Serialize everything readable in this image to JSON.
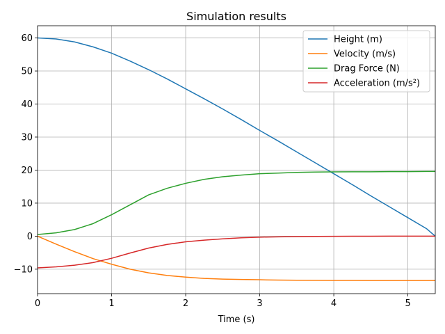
{
  "chart_data": {
    "type": "line",
    "title": "Simulation results",
    "xlabel": "Time (s)",
    "ylabel": "",
    "xlim": [
      0,
      5.37
    ],
    "ylim": [
      -17.4,
      63.7
    ],
    "xticks": [
      0,
      1,
      2,
      3,
      4,
      5
    ],
    "yticks": [
      -10,
      0,
      10,
      20,
      30,
      40,
      50,
      60
    ],
    "grid": true,
    "legend_position": "top-right",
    "x": [
      0,
      0.25,
      0.5,
      0.75,
      1.0,
      1.25,
      1.5,
      1.75,
      2.0,
      2.25,
      2.5,
      2.75,
      3.0,
      3.25,
      3.5,
      3.75,
      4.0,
      4.25,
      4.5,
      4.75,
      5.0,
      5.25,
      5.37
    ],
    "series": [
      {
        "name": "Height (m)",
        "color": "#1f77b4",
        "values": [
          60.0,
          59.7,
          58.8,
          57.3,
          55.4,
          53.0,
          50.4,
          47.6,
          44.6,
          41.6,
          38.5,
          35.3,
          32.0,
          28.8,
          25.5,
          22.2,
          18.9,
          15.6,
          12.2,
          8.9,
          5.6,
          2.3,
          0.0
        ]
      },
      {
        "name": "Velocity (m/s)",
        "color": "#ff7f0e",
        "values": [
          0,
          -2.4,
          -4.7,
          -6.8,
          -8.5,
          -10.0,
          -11.1,
          -11.9,
          -12.4,
          -12.8,
          -13.0,
          -13.1,
          -13.2,
          -13.3,
          -13.35,
          -13.38,
          -13.4,
          -13.4,
          -13.42,
          -13.42,
          -13.43,
          -13.43,
          -13.43
        ]
      },
      {
        "name": "Drag Force (N)",
        "color": "#2ca02c",
        "values": [
          0.5,
          1.0,
          2.0,
          3.8,
          6.5,
          9.5,
          12.5,
          14.5,
          16.0,
          17.2,
          18.0,
          18.5,
          18.9,
          19.1,
          19.3,
          19.4,
          19.45,
          19.5,
          19.5,
          19.55,
          19.55,
          19.6,
          19.6
        ]
      },
      {
        "name": "Acceleration (m/s²)",
        "color": "#d62728",
        "values": [
          -9.6,
          -9.3,
          -8.8,
          -8.0,
          -6.7,
          -5.1,
          -3.6,
          -2.5,
          -1.7,
          -1.2,
          -0.8,
          -0.5,
          -0.3,
          -0.2,
          -0.12,
          -0.07,
          -0.04,
          -0.02,
          -0.01,
          0,
          0,
          0,
          0
        ]
      }
    ]
  }
}
